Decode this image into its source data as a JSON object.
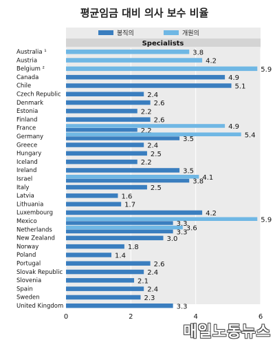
{
  "chart_data": {
    "type": "bar",
    "orientation": "horizontal",
    "title": "평균임금  대비 의사 보수 비율",
    "subtitle": "Specialists",
    "categories": [
      "Australia ¹",
      "Austria",
      "Belgium ²",
      "Canada",
      "Chile",
      "Czech Republic",
      "Denmark",
      "Estonia",
      "Finland",
      "France",
      "Germany",
      "Greece",
      "Hungary",
      "Iceland",
      "Ireland",
      "Israel",
      "Italy",
      "Latvia",
      "Lithuania",
      "Luxembourg",
      "Mexico",
      "Netherlands",
      "New Zealand",
      "Norway",
      "Poland",
      "Portugal",
      "Slovak Republic",
      "Slovenia",
      "Spain",
      "Sweden",
      "United Kingdom"
    ],
    "series": [
      {
        "name": "봉직의",
        "color": "#3a7ebf",
        "values": [
          null,
          null,
          null,
          4.9,
          5.1,
          2.4,
          2.6,
          2.2,
          2.6,
          2.2,
          3.5,
          2.4,
          2.5,
          2.2,
          3.5,
          3.8,
          2.5,
          1.6,
          1.7,
          4.2,
          3.3,
          3.3,
          3.0,
          1.8,
          1.4,
          2.6,
          2.4,
          2.1,
          2.4,
          2.3,
          3.3
        ]
      },
      {
        "name": "개원의",
        "color": "#6fb7e4",
        "values": [
          3.8,
          4.2,
          5.9,
          null,
          null,
          null,
          null,
          null,
          null,
          4.9,
          5.4,
          null,
          null,
          null,
          null,
          4.1,
          null,
          null,
          null,
          null,
          5.9,
          3.6,
          null,
          null,
          null,
          null,
          null,
          null,
          null,
          null,
          null
        ]
      }
    ],
    "xlim": [
      0,
      6
    ],
    "xticks": [
      0,
      2,
      4,
      6
    ],
    "grid": true,
    "legend": "top"
  },
  "watermark": "매일노동뉴스"
}
